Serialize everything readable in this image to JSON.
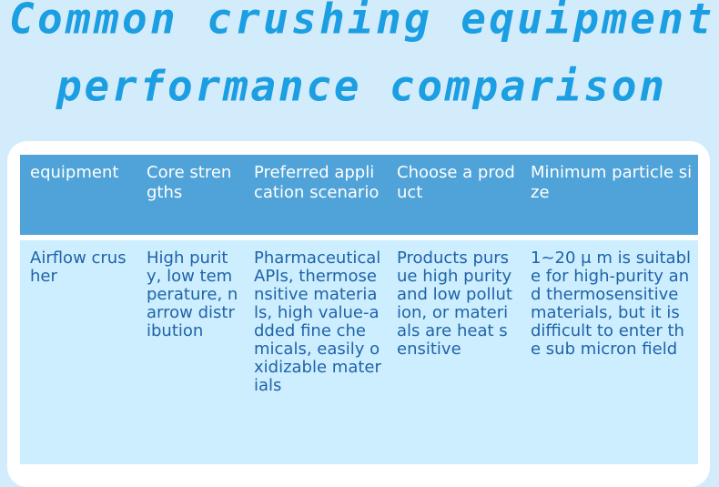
{
  "header": {
    "title_lines": [
      "Common crushing equipment",
      "performance comparison"
    ]
  },
  "table": {
    "columns": [
      "equipment",
      "Core strengths",
      "Preferred application scenario",
      "Choose a product",
      "Minimum particle size"
    ],
    "rows": [
      [
        "Airflow crusher",
        "High purity, low temperature, narrow distribution",
        "Pharmaceutical APIs, thermosensitive materials, high value-added fine chemicals, easily oxidizable materials",
        "Products pursue high purity and low pollution, or materials are heat sensitive",
        "1~20 μ m is suitable for high-purity and thermosensitive materials, but it is difficult to enter the sub micron field"
      ]
    ]
  }
}
